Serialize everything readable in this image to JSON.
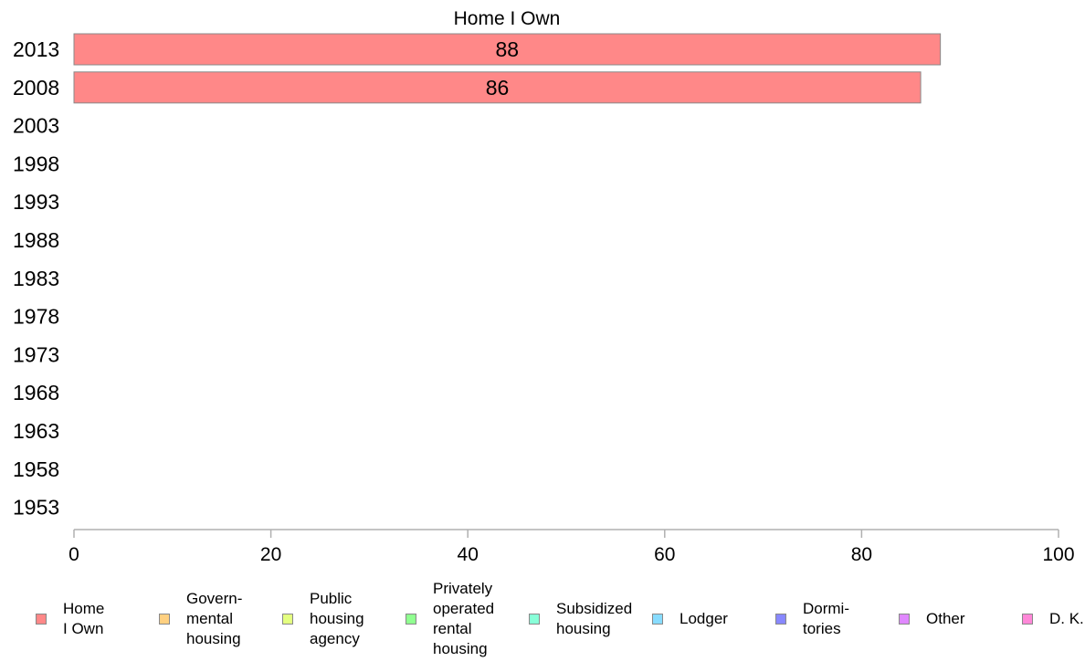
{
  "chart_data": {
    "type": "bar",
    "orientation": "horizontal",
    "title": "Home I Own",
    "categories": [
      "2013",
      "2008",
      "2003",
      "1998",
      "1993",
      "1988",
      "1983",
      "1978",
      "1973",
      "1968",
      "1963",
      "1958",
      "1953"
    ],
    "series": [
      {
        "name": "Home\nI Own",
        "color": "#ff8888",
        "values": [
          88,
          86,
          null,
          null,
          null,
          null,
          null,
          null,
          null,
          null,
          null,
          null,
          null
        ]
      },
      {
        "name": "Govern-\nmental\n housing",
        "color": "#ffd080",
        "values": [
          null,
          null,
          null,
          null,
          null,
          null,
          null,
          null,
          null,
          null,
          null,
          null,
          null
        ]
      },
      {
        "name": "Public\nhousing\nagency",
        "color": "#e4ff80",
        "values": [
          null,
          null,
          null,
          null,
          null,
          null,
          null,
          null,
          null,
          null,
          null,
          null,
          null
        ]
      },
      {
        "name": "Privately\noperated\nrental\nhousing",
        "color": "#90ff90",
        "values": [
          null,
          null,
          null,
          null,
          null,
          null,
          null,
          null,
          null,
          null,
          null,
          null,
          null
        ]
      },
      {
        "name": "Subsidized\n housing",
        "color": "#88ffd8",
        "values": [
          null,
          null,
          null,
          null,
          null,
          null,
          null,
          null,
          null,
          null,
          null,
          null,
          null
        ]
      },
      {
        "name": "Lodger",
        "color": "#88dcff",
        "values": [
          null,
          null,
          null,
          null,
          null,
          null,
          null,
          null,
          null,
          null,
          null,
          null,
          null
        ]
      },
      {
        "name": "Dormi-\ntories",
        "color": "#8888ff",
        "values": [
          null,
          null,
          null,
          null,
          null,
          null,
          null,
          null,
          null,
          null,
          null,
          null,
          null
        ]
      },
      {
        "name": "Other",
        "color": "#e088ff",
        "values": [
          null,
          null,
          null,
          null,
          null,
          null,
          null,
          null,
          null,
          null,
          null,
          null,
          null
        ]
      },
      {
        "name": "D. K.",
        "color": "#ff88d8",
        "values": [
          null,
          null,
          null,
          null,
          null,
          null,
          null,
          null,
          null,
          null,
          null,
          null,
          null
        ]
      }
    ],
    "xlim": [
      0,
      100
    ],
    "xticks": [
      0,
      20,
      40,
      60,
      80,
      100
    ],
    "grid": false,
    "legend_position": "bottom",
    "bar_border_color": "#888888"
  }
}
